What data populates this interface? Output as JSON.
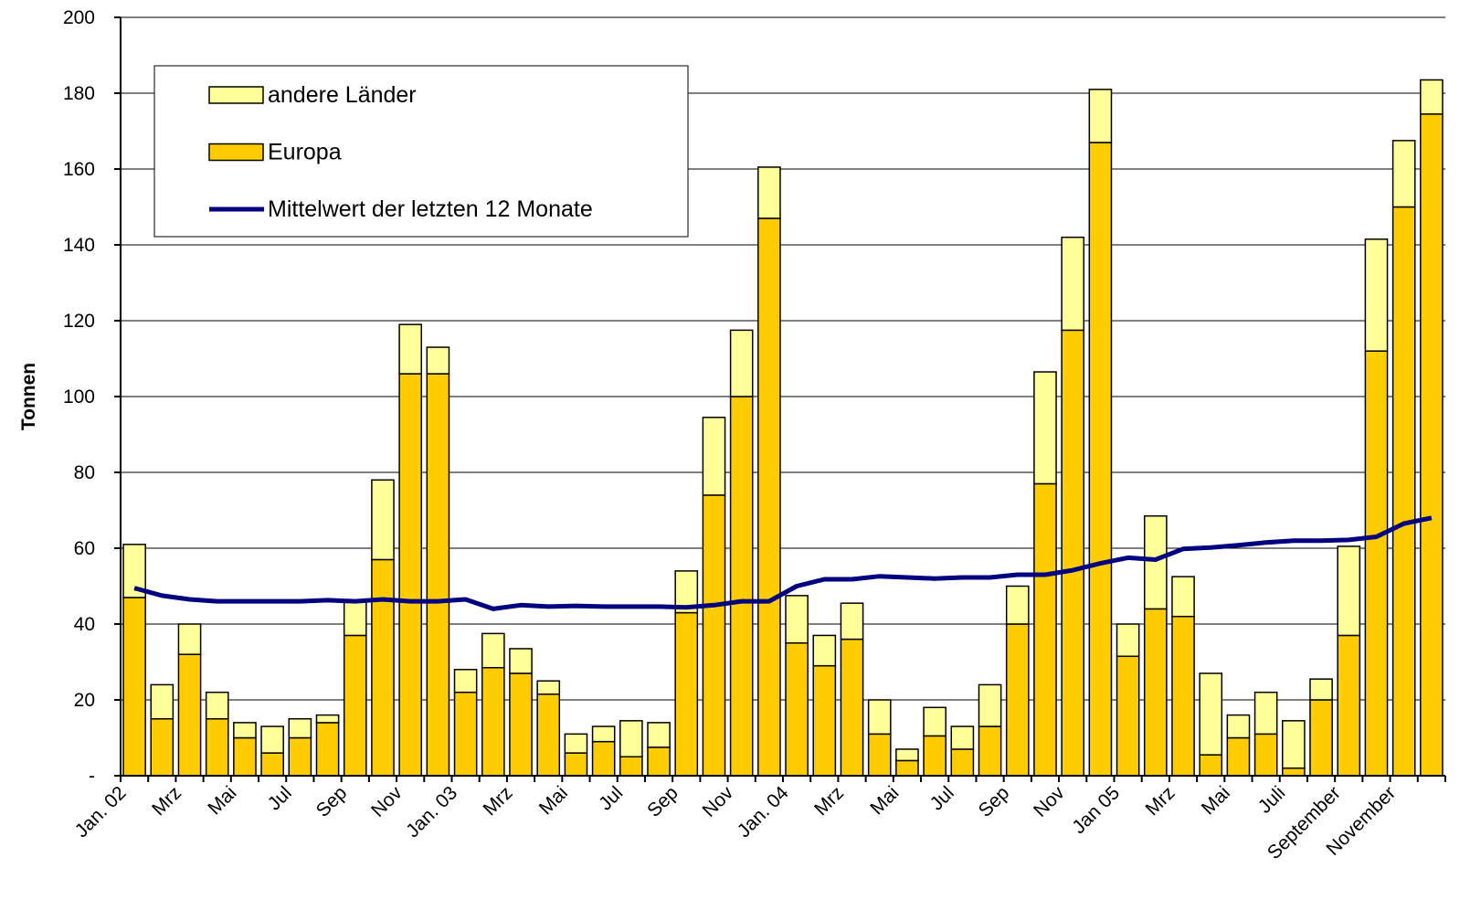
{
  "chart_data": {
    "type": "bar",
    "stacked": true,
    "y_label": "Tonnen",
    "categories": [
      "Jan. 02",
      null,
      "Mrz",
      null,
      "Mai",
      null,
      "Jul",
      null,
      "Sep",
      null,
      "Nov",
      null,
      "Jan. 03",
      null,
      "Mrz",
      null,
      "Mai",
      null,
      "Jul",
      null,
      "Sep",
      null,
      "Nov",
      null,
      "Jan. 04",
      null,
      "Mrz",
      null,
      "Mai",
      null,
      "Jul",
      null,
      "Sep",
      null,
      "Nov",
      null,
      "Jan 05",
      null,
      "Mrz",
      null,
      "Mai",
      null,
      "Juli",
      null,
      "September",
      null,
      "November",
      null
    ],
    "series": [
      {
        "name": "Europa",
        "type": "bar",
        "color": "#FFCC00",
        "values": [
          47,
          15,
          32,
          15,
          10,
          6,
          10,
          14,
          37,
          57,
          106,
          106,
          22,
          28.5,
          27,
          21.5,
          6,
          9,
          5,
          7.5,
          43,
          74,
          100,
          147,
          35,
          29,
          36,
          11,
          4,
          10.5,
          7,
          13,
          40,
          77,
          117.5,
          167,
          31.5,
          44,
          42,
          5.5,
          10,
          11,
          2,
          20,
          37,
          112,
          150,
          174.5
        ]
      },
      {
        "name": "andere Länder",
        "type": "bar",
        "color": "#FFFF99",
        "values": [
          14,
          9,
          8,
          7,
          4,
          7,
          5,
          2,
          9,
          21,
          13,
          7,
          6,
          9,
          6.5,
          3.5,
          5,
          4,
          9.5,
          6.5,
          11,
          20.5,
          17.5,
          13.5,
          12.5,
          8,
          9.5,
          9,
          3,
          7.5,
          6,
          11,
          10,
          29.5,
          24.5,
          14,
          8.5,
          24.5,
          10.5,
          21.5,
          6,
          11,
          12.5,
          5.5,
          23.5,
          29.5,
          17.5,
          9
        ]
      },
      {
        "name": "Mittelwert der letzten 12 Monate",
        "type": "line",
        "color": "#000080",
        "values": [
          49.5,
          47.5,
          46.5,
          46,
          46,
          46,
          46,
          46.3,
          46,
          46.5,
          46,
          46,
          46.5,
          44,
          45,
          44.6,
          44.8,
          44.6,
          44.6,
          44.6,
          44.4,
          45,
          46,
          46,
          50,
          51.8,
          51.8,
          52.6,
          52.3,
          52,
          52.3,
          52.3,
          53,
          53,
          54.2,
          56,
          57.5,
          57,
          59.8,
          60.2,
          60.8,
          61.5,
          62,
          62,
          62.2,
          63,
          66.5,
          68
        ]
      }
    ],
    "ylim": [
      0,
      200
    ],
    "yticks": [
      {
        "value": 0,
        "label": "-"
      },
      20,
      40,
      60,
      80,
      100,
      120,
      140,
      160,
      180,
      200
    ],
    "grid": true
  }
}
